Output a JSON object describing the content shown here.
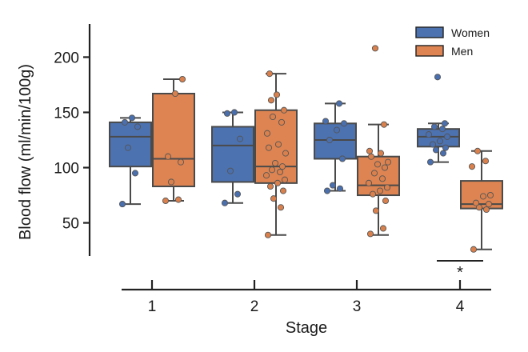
{
  "chart_data": {
    "type": "box",
    "xlabel": "Stage",
    "ylabel": "Blood flow (ml/min/100g)",
    "categories": [
      "1",
      "2",
      "3",
      "4"
    ],
    "yticks": [
      50,
      100,
      150,
      200
    ],
    "ylim": [
      20,
      230
    ],
    "grid": false,
    "legend_position": "top-right",
    "series": [
      {
        "name": "Women",
        "color": "#4c72b0",
        "boxes": [
          {
            "q1": 101,
            "median": 128,
            "q3": 141,
            "whisker_low": 67,
            "whisker_high": 145
          },
          {
            "q1": 87,
            "median": 120,
            "q3": 137,
            "whisker_low": 68,
            "whisker_high": 150
          },
          {
            "q1": 108,
            "median": 125,
            "q3": 140,
            "whisker_low": 79,
            "whisker_high": 158
          },
          {
            "q1": 119,
            "median": 128,
            "q3": 135,
            "whisker_low": 105,
            "whisker_high": 140
          }
        ],
        "points": [
          [
            67,
            95,
            118,
            137,
            141,
            145
          ],
          [
            68,
            76,
            97,
            126,
            149,
            150
          ],
          [
            79,
            81,
            84,
            108,
            125,
            134,
            140,
            142,
            158
          ],
          [
            105,
            113,
            116,
            118,
            121,
            124,
            128,
            130,
            135,
            137,
            140,
            182
          ]
        ]
      },
      {
        "name": "Men",
        "color": "#dd8452",
        "boxes": [
          {
            "q1": 83,
            "median": 108,
            "q3": 167,
            "whisker_low": 70,
            "whisker_high": 180
          },
          {
            "q1": 86,
            "median": 101,
            "q3": 152,
            "whisker_low": 39,
            "whisker_high": 185
          },
          {
            "q1": 75,
            "median": 84,
            "q3": 110,
            "whisker_low": 39,
            "whisker_high": 139
          },
          {
            "q1": 63,
            "median": 67,
            "q3": 88,
            "whisker_low": 26,
            "whisker_high": 115
          }
        ],
        "points": [
          [
            70,
            71,
            87,
            105,
            110,
            167,
            180
          ],
          [
            39,
            64,
            72,
            79,
            83,
            86,
            89,
            93,
            96,
            98,
            101,
            104,
            113,
            118,
            121,
            131,
            141,
            146,
            152,
            161,
            166,
            185
          ],
          [
            40,
            45,
            61,
            70,
            76,
            79,
            82,
            86,
            90,
            95,
            100,
            103,
            105,
            110,
            113,
            115,
            139,
            208
          ],
          [
            26,
            62,
            64,
            67,
            68,
            74,
            75,
            101,
            106,
            115
          ]
        ]
      }
    ],
    "annotations": [
      {
        "category": "4",
        "text": "*"
      }
    ]
  }
}
